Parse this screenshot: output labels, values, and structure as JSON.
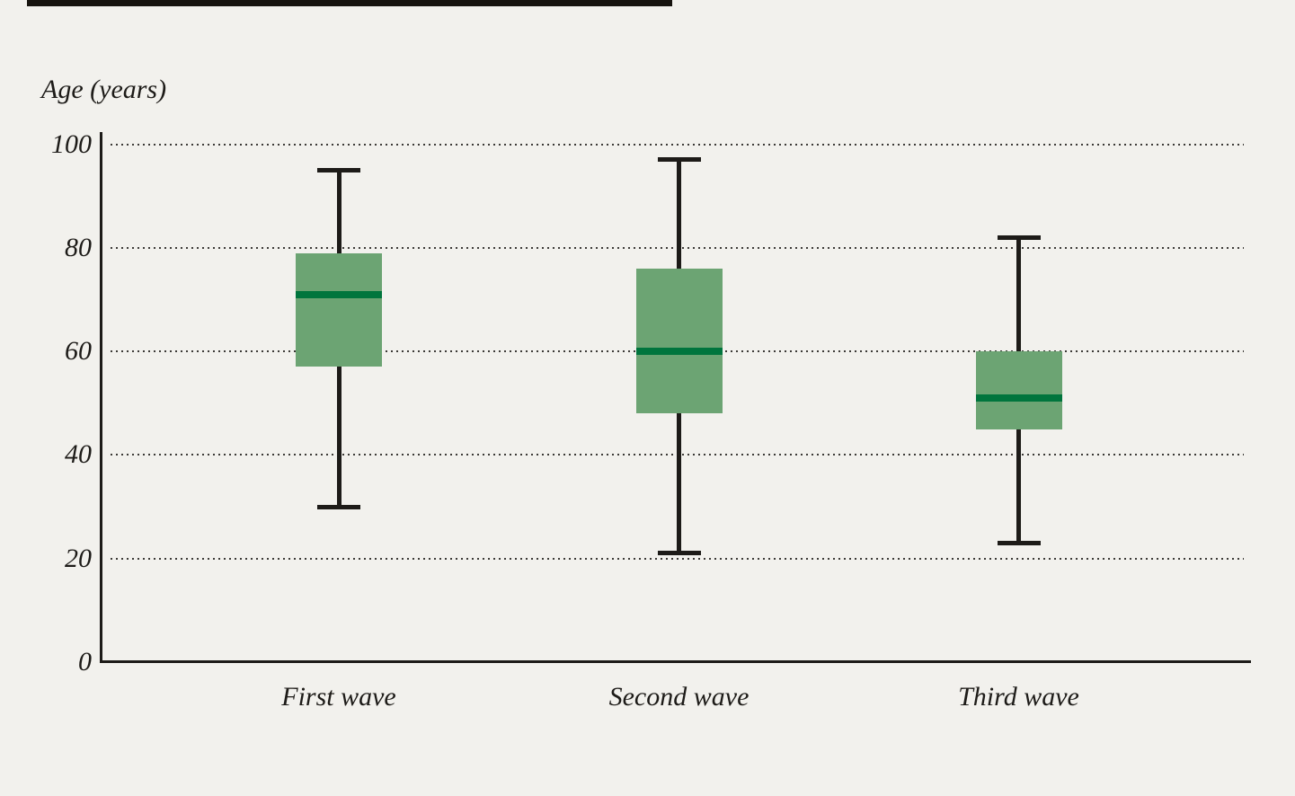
{
  "page": {
    "background_color": "#F2F1ED",
    "top_rule_color": "#17140F"
  },
  "chart_data": {
    "type": "boxplot",
    "title": "Age (years)",
    "ylabel": "Age (years)",
    "categories": [
      "First wave",
      "Second wave",
      "Third wave"
    ],
    "series": [
      {
        "name": "First wave",
        "min": 30,
        "q1": 57,
        "median": 71,
        "q3": 79,
        "max": 95
      },
      {
        "name": "Second wave",
        "min": 21,
        "q1": 48,
        "median": 60,
        "q3": 76,
        "max": 97
      },
      {
        "name": "Third wave",
        "min": 23,
        "q1": 45,
        "median": 51,
        "q3": 60,
        "max": 82
      }
    ],
    "ylim": [
      0,
      100
    ],
    "yticks": [
      0,
      20,
      40,
      60,
      80,
      100
    ],
    "grid": "horizontal dotted lines at 20, 40, 60, 80, 100",
    "legend": "none",
    "colors": {
      "box_fill": "#6CA473",
      "median": "#00753D",
      "whisker": "#1D1B18",
      "axis": "#1D1B18",
      "gridline_dots": "#3C3A37",
      "background": "#F2F1ED",
      "text": "#1D1B18"
    }
  }
}
